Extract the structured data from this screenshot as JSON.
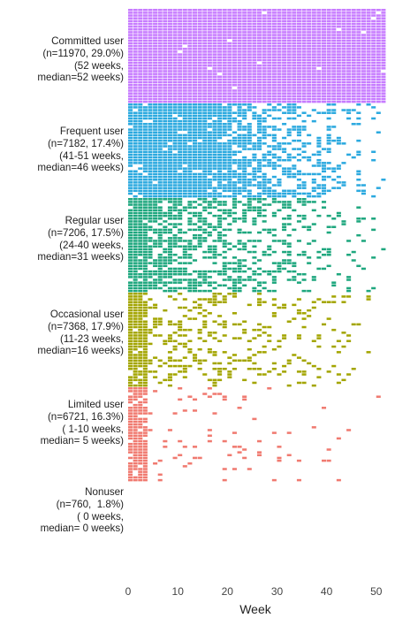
{
  "chart_data": {
    "type": "heatmap",
    "xlabel": "Week",
    "xticks": [
      0,
      10,
      20,
      30,
      40,
      50
    ],
    "xlim": [
      0,
      52
    ],
    "weeks": 52,
    "groups": [
      {
        "lines": [
          "Committed user",
          "(n=11970, 29.0%)",
          "(52 weeks,",
          "median=52 weeks)"
        ],
        "color": "#c77cff",
        "median_weeks": 52,
        "range": [
          52,
          52
        ],
        "n": 11970,
        "pct": 29.0
      },
      {
        "lines": [
          "Frequent user",
          "(n=7182, 17.4%)",
          "(41-51 weeks,",
          "median=46 weeks)"
        ],
        "color": "#2ba9df",
        "median_weeks": 46,
        "range": [
          41,
          51
        ],
        "n": 7182,
        "pct": 17.4
      },
      {
        "lines": [
          "Regular user",
          "(n=7206, 17.5%)",
          "(24-40 weeks,",
          "median=31 weeks)"
        ],
        "color": "#1ea77e",
        "median_weeks": 31,
        "range": [
          24,
          40
        ],
        "n": 7206,
        "pct": 17.5
      },
      {
        "lines": [
          "Occasional user",
          "(n=7368, 17.9%)",
          "(11-23 weeks,",
          "median=16 weeks)"
        ],
        "color": "#a3a500",
        "median_weeks": 16,
        "range": [
          11,
          23
        ],
        "n": 7368,
        "pct": 17.9
      },
      {
        "lines": [
          "Limited user",
          "(n=6721, 16.3%)",
          "( 1-10 weeks,",
          "median= 5 weeks)"
        ],
        "color": "#f07a70",
        "median_weeks": 5,
        "range": [
          1,
          10
        ],
        "n": 6721,
        "pct": 16.3
      },
      {
        "lines": [
          "Nonuser",
          "(n=760,  1.8%)",
          "( 0 weeks,",
          "median= 0 weeks)"
        ],
        "color": "#ffffff",
        "median_weeks": 0,
        "range": [
          0,
          0
        ],
        "n": 760,
        "pct": 1.8
      }
    ]
  }
}
